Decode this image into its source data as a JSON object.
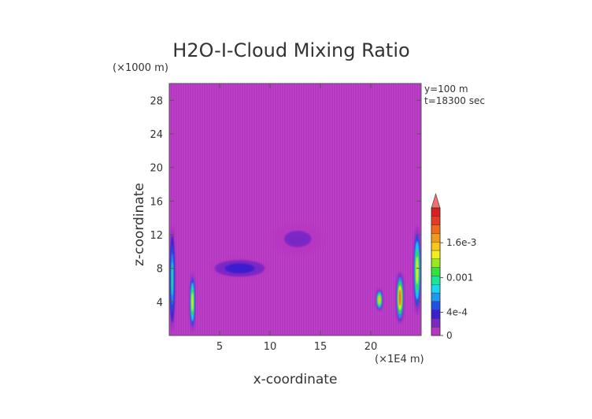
{
  "chart_data": {
    "type": "heatmap",
    "title": "H2O-I-Cloud Mixing Ratio",
    "xlabel": "x-coordinate",
    "ylabel": "z-coordinate",
    "x_units": "(×1E4 m)",
    "y_units": "(×1000 m)",
    "annotations": [
      "y=100 m",
      "t=18300 sec"
    ],
    "xlim": [
      0,
      25
    ],
    "ylim": [
      0,
      30
    ],
    "x_ticks": [
      5,
      10,
      15,
      20
    ],
    "x_tick_labels": [
      "5",
      "10",
      "15",
      "20"
    ],
    "y_ticks": [
      4,
      8,
      12,
      16,
      20,
      24,
      28
    ],
    "y_tick_labels": [
      "4",
      "8",
      "12",
      "16",
      "20",
      "24",
      "28"
    ],
    "grid": false,
    "background_value": 0,
    "colorbar": {
      "placement": "right",
      "min": 0,
      "max": 0.0022,
      "tick_values": [
        0,
        0.0004,
        0.001,
        0.0016
      ],
      "tick_labels": [
        "0",
        "4e-4",
        "0.001",
        "1.6e-3"
      ],
      "colors": [
        "#b637c2",
        "#7a28c6",
        "#3b1fd0",
        "#1f4fe6",
        "#1e98f0",
        "#18d8f0",
        "#17e896",
        "#33e23a",
        "#98ea1e",
        "#f1f01c",
        "#f8c719",
        "#f59a18",
        "#ef6b1a",
        "#e83a22",
        "#dc1e1e"
      ],
      "extend_color": "#f07070"
    },
    "features": [
      {
        "x": [
          0,
          0.6
        ],
        "z": [
          0.5,
          13
        ],
        "peak_value": 0.0009
      },
      {
        "x": [
          2.0,
          2.6
        ],
        "z": [
          0.5,
          7.5
        ],
        "peak_value": 0.0014
      },
      {
        "x": [
          4,
          10
        ],
        "z": [
          6.8,
          9.2
        ],
        "peak_value": 0.0004
      },
      {
        "x": [
          10,
          15.5
        ],
        "z": [
          9.5,
          13.5
        ],
        "peak_value": 0.0002
      },
      {
        "x": [
          20.5,
          21.2
        ],
        "z": [
          3,
          5.5
        ],
        "peak_value": 0.0016
      },
      {
        "x": [
          22.5,
          23.3
        ],
        "z": [
          1.5,
          7.5
        ],
        "peak_value": 0.0018
      },
      {
        "x": [
          24.2,
          25
        ],
        "z": [
          2.5,
          13
        ],
        "peak_value": 0.0014
      }
    ]
  }
}
